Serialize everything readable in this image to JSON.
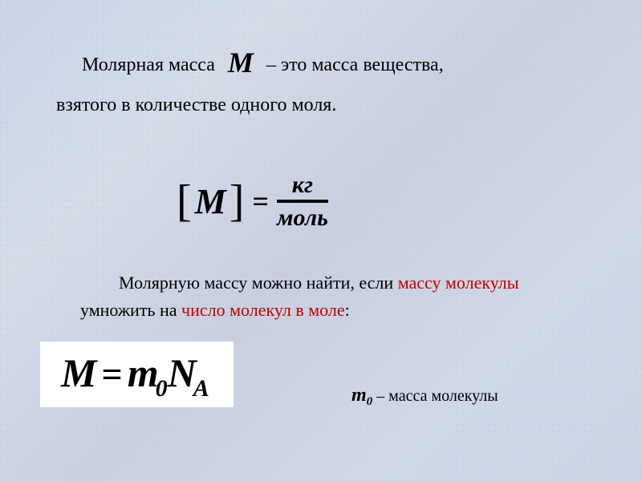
{
  "para1": {
    "label": "Молярная масса",
    "M": "М",
    "rest1": " – это масса вещества,",
    "line2": "взятого в количестве одного моля."
  },
  "formula1": {
    "bracket_open": "[",
    "M": "М",
    "bracket_close": "]",
    "eq": "=",
    "numerator": "кг",
    "denominator": "моль",
    "frac_color": "#000000",
    "text_color": "#000000"
  },
  "para2": {
    "line1a": "Молярную массу можно найти, если ",
    "line1b_red": "массу молекулы",
    "line2a": "умножить на ",
    "line2b_red": "число молекул в моле",
    "line2c": ":",
    "red_color": "#c00000"
  },
  "formula2": {
    "M": "М",
    "eq": "=",
    "m": "m",
    "zero": "0",
    "N": "N",
    "A": "A",
    "bg": "#ffffff"
  },
  "para3": {
    "m": "m",
    "zero": "0",
    "dash": " – ",
    "text": "масса молекулы"
  },
  "style": {
    "body_font": "Georgia, Times New Roman, serif",
    "text_color": "#000000",
    "background_base": "#cdd7e6"
  }
}
